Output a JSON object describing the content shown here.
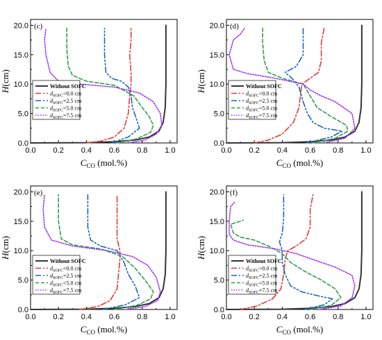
{
  "chart_data": [
    {
      "type": "line",
      "panel_label": "(c)",
      "xlabel_main": "C",
      "xlabel_sub": "CO",
      "xlabel_unit": " (mol.%)",
      "ylabel_italic": "H",
      "ylabel_unit": "(cm)",
      "xlim": [
        0.0,
        1.05
      ],
      "ylim": [
        0.0,
        21.0
      ],
      "xticks": [
        "0.0",
        "0.2",
        "0.4",
        "0.6",
        "0.8",
        "1.0"
      ],
      "yticks": [
        "0.0",
        "5.0",
        "10.0",
        "15.0",
        "20.0"
      ],
      "legend_position": "middle-left",
      "series": [
        {
          "name": "Without SOFC",
          "name_sub": "",
          "name_rest": "",
          "color": "#333333",
          "dash": "solid",
          "x": [
            0.0,
            0.4,
            0.6,
            0.75,
            0.85,
            0.92,
            0.95,
            0.965,
            0.97,
            0.97
          ],
          "y": [
            0.0,
            0.05,
            0.2,
            0.5,
            1.0,
            2.0,
            3.5,
            6.0,
            10.0,
            20.0
          ]
        },
        {
          "name": "d",
          "name_sub": "SOFC",
          "name_rest": "=0.0 cm",
          "color": "#e53935",
          "dash": "dashdot",
          "x": [
            0.4,
            0.5,
            0.6,
            0.67,
            0.7,
            0.71,
            0.72,
            0.72,
            0.71,
            0.72,
            0.72
          ],
          "y": [
            0.0,
            0.3,
            1.0,
            2.5,
            5.0,
            8.0,
            10.0,
            12.0,
            15.0,
            17.5,
            19.5
          ]
        },
        {
          "name": "d",
          "name_sub": "SOFC",
          "name_rest": "=2.5 cm",
          "color": "#1565c0",
          "dash": "dashdotdot",
          "x": [
            0.58,
            0.7,
            0.78,
            0.76,
            0.73,
            0.72,
            0.7,
            0.65,
            0.58,
            0.54,
            0.53,
            0.53
          ],
          "y": [
            0.0,
            1.0,
            2.5,
            4.0,
            6.0,
            8.0,
            9.5,
            10.5,
            11.0,
            12.0,
            15.0,
            19.5
          ]
        },
        {
          "name": "d",
          "name_sub": "SOFC",
          "name_rest": "=5.0 cm",
          "color": "#2e9e47",
          "dash": "dashed",
          "x": [
            0.62,
            0.76,
            0.86,
            0.88,
            0.85,
            0.8,
            0.74,
            0.6,
            0.4,
            0.3,
            0.27,
            0.26,
            0.26
          ],
          "y": [
            0.0,
            0.7,
            1.8,
            3.0,
            4.5,
            6.0,
            8.0,
            9.8,
            10.5,
            11.5,
            13.0,
            16.0,
            19.5
          ]
        },
        {
          "name": "d",
          "name_sub": "SOFC",
          "name_rest": "=7.5 cm",
          "color": "#9b30ff",
          "dash": "dotted",
          "x": [
            0.7,
            0.82,
            0.9,
            0.94,
            0.93,
            0.88,
            0.78,
            0.6,
            0.35,
            0.2,
            0.14,
            0.11,
            0.1,
            0.11
          ],
          "y": [
            0.0,
            0.5,
            1.5,
            3.0,
            5.0,
            7.0,
            8.5,
            9.5,
            10.0,
            10.5,
            12.0,
            15.0,
            17.5,
            19.5
          ]
        }
      ]
    },
    {
      "type": "line",
      "panel_label": "(d)",
      "xlabel_main": "C",
      "xlabel_sub": "CO",
      "xlabel_unit": " (mol.%)",
      "ylabel_italic": "H",
      "ylabel_unit": "(cm)",
      "xlim": [
        0.0,
        1.05
      ],
      "ylim": [
        0.0,
        21.0
      ],
      "xticks": [
        "0.0",
        "0.2",
        "0.4",
        "0.6",
        "0.8",
        "1.0"
      ],
      "yticks": [
        "0.0",
        "5.0",
        "10.0",
        "15.0",
        "20.0"
      ],
      "legend_position": "middle-left",
      "series": [
        {
          "name": "Without SOFC",
          "name_sub": "",
          "name_rest": "",
          "color": "#333333",
          "dash": "solid",
          "x": [
            0.0,
            0.4,
            0.6,
            0.75,
            0.85,
            0.92,
            0.95,
            0.965,
            0.97,
            0.97
          ],
          "y": [
            0.0,
            0.05,
            0.2,
            0.5,
            1.0,
            2.0,
            3.5,
            6.0,
            10.0,
            20.0
          ]
        },
        {
          "name": "d",
          "name_sub": "SOFC",
          "name_rest": "=0.0 cm",
          "color": "#e53935",
          "dash": "dashdot",
          "x": [
            0.2,
            0.3,
            0.4,
            0.48,
            0.52,
            0.53,
            0.54,
            0.6,
            0.66,
            0.68,
            0.68,
            0.7
          ],
          "y": [
            0.0,
            0.5,
            1.5,
            3.5,
            6.0,
            8.0,
            10.0,
            11.0,
            12.0,
            14.0,
            17.0,
            19.5
          ]
        },
        {
          "name": "d",
          "name_sub": "SOFC",
          "name_rest": "=2.5 cm",
          "color": "#1565c0",
          "dash": "dashdotdot",
          "x": [
            0.57,
            0.75,
            0.83,
            0.7,
            0.62,
            0.58,
            0.55,
            0.52,
            0.47,
            0.42,
            0.5,
            0.55,
            0.55
          ],
          "y": [
            0.0,
            1.0,
            2.0,
            2.5,
            3.5,
            5.0,
            7.0,
            9.5,
            11.0,
            12.0,
            13.0,
            15.0,
            19.5
          ]
        },
        {
          "name": "d",
          "name_sub": "SOFC",
          "name_rest": "=5.0 cm",
          "color": "#2e9e47",
          "dash": "dashed",
          "x": [
            0.62,
            0.78,
            0.87,
            0.86,
            0.75,
            0.65,
            0.6,
            0.55,
            0.4,
            0.3,
            0.27,
            0.26,
            0.26
          ],
          "y": [
            0.0,
            0.8,
            2.0,
            3.0,
            4.5,
            6.0,
            8.0,
            10.0,
            11.0,
            12.0,
            14.0,
            17.0,
            19.5
          ]
        },
        {
          "name": "d",
          "name_sub": "SOFC",
          "name_rest": "=7.5 cm",
          "color": "#9b30ff",
          "dash": "dotted",
          "x": [
            0.7,
            0.85,
            0.92,
            0.9,
            0.78,
            0.68,
            0.6,
            0.55,
            0.35,
            0.15,
            0.05,
            0.02,
            0.05,
            0.1,
            0.13
          ],
          "y": [
            0.0,
            0.8,
            2.5,
            5.0,
            7.0,
            8.0,
            9.0,
            10.0,
            11.0,
            11.8,
            12.5,
            15.0,
            17.5,
            18.5,
            19.5
          ]
        }
      ]
    },
    {
      "type": "line",
      "panel_label": "(e)",
      "xlabel_main": "C",
      "xlabel_sub": "CO",
      "xlabel_unit": " (mol.%)",
      "ylabel_italic": "H",
      "ylabel_unit": "(cm)",
      "xlim": [
        0.0,
        1.05
      ],
      "ylim": [
        0.0,
        21.0
      ],
      "xticks": [
        "0.0",
        "0.2",
        "0.4",
        "0.6",
        "0.8",
        "1.0"
      ],
      "yticks": [
        "0.0",
        "5.0",
        "10.0",
        "15.0",
        "20.0"
      ],
      "legend_position": "bottom-left",
      "series": [
        {
          "name": "Without SOFC",
          "name_sub": "",
          "name_rest": "",
          "color": "#333333",
          "dash": "solid",
          "x": [
            0.0,
            0.4,
            0.6,
            0.75,
            0.85,
            0.92,
            0.95,
            0.965,
            0.97,
            0.97
          ],
          "y": [
            0.0,
            0.05,
            0.2,
            0.5,
            1.0,
            2.0,
            3.5,
            6.0,
            10.0,
            20.0
          ]
        },
        {
          "name": "d",
          "name_sub": "SOFC",
          "name_rest": "=0.0 cm",
          "color": "#e53935",
          "dash": "dashdot",
          "x": [
            0.35,
            0.48,
            0.57,
            0.62,
            0.63,
            0.64,
            0.64,
            0.62,
            0.62,
            0.62
          ],
          "y": [
            0.0,
            0.5,
            1.5,
            3.5,
            6.0,
            8.5,
            10.0,
            12.0,
            16.0,
            19.5
          ]
        },
        {
          "name": "d",
          "name_sub": "SOFC",
          "name_rest": "=2.5 cm",
          "color": "#1565c0",
          "dash": "dashdotdot",
          "x": [
            0.52,
            0.68,
            0.78,
            0.75,
            0.7,
            0.67,
            0.62,
            0.5,
            0.43,
            0.41,
            0.41
          ],
          "y": [
            0.0,
            0.8,
            2.0,
            4.0,
            6.0,
            8.0,
            10.0,
            10.8,
            11.8,
            14.0,
            19.5
          ]
        },
        {
          "name": "d",
          "name_sub": "SOFC",
          "name_rest": "=5.0 cm",
          "color": "#2e9e47",
          "dash": "dashed",
          "x": [
            0.6,
            0.76,
            0.86,
            0.88,
            0.82,
            0.75,
            0.66,
            0.5,
            0.3,
            0.22,
            0.2,
            0.2
          ],
          "y": [
            0.0,
            0.7,
            1.8,
            3.0,
            5.0,
            7.0,
            9.0,
            10.3,
            11.0,
            12.0,
            15.0,
            19.5
          ]
        },
        {
          "name": "d",
          "name_sub": "SOFC",
          "name_rest": "=7.5 cm",
          "color": "#9b30ff",
          "dash": "dotted",
          "x": [
            0.68,
            0.82,
            0.91,
            0.93,
            0.9,
            0.84,
            0.73,
            0.55,
            0.3,
            0.15,
            0.1,
            0.09,
            0.1
          ],
          "y": [
            0.0,
            0.5,
            1.5,
            3.0,
            5.5,
            7.5,
            9.0,
            10.0,
            10.8,
            11.8,
            14.0,
            17.0,
            19.5
          ]
        }
      ]
    },
    {
      "type": "line",
      "panel_label": "(f)",
      "xlabel_main": "C",
      "xlabel_sub": "CO",
      "xlabel_unit": " (mol.%)",
      "ylabel_italic": "H",
      "ylabel_unit": "(cm)",
      "xlim": [
        0.0,
        1.05
      ],
      "ylim": [
        0.0,
        21.0
      ],
      "xticks": [
        "0.0",
        "0.2",
        "0.4",
        "0.6",
        "0.8",
        "1.0"
      ],
      "yticks": [
        "0.0",
        "5.0",
        "10.0",
        "15.0",
        "20.0"
      ],
      "legend_position": "bottom-left",
      "series": [
        {
          "name": "Without SOFC",
          "name_sub": "",
          "name_rest": "",
          "color": "#333333",
          "dash": "solid",
          "x": [
            0.0,
            0.4,
            0.6,
            0.75,
            0.85,
            0.92,
            0.95,
            0.965,
            0.97,
            0.97
          ],
          "y": [
            0.0,
            0.05,
            0.2,
            0.5,
            1.0,
            2.0,
            3.5,
            6.0,
            10.0,
            20.0
          ]
        },
        {
          "name": "d",
          "name_sub": "SOFC",
          "name_rest": "=0.0 cm",
          "color": "#e53935",
          "dash": "dashdot",
          "x": [
            0.1,
            0.22,
            0.33,
            0.39,
            0.41,
            0.42,
            0.44,
            0.5,
            0.57,
            0.6,
            0.6,
            0.62
          ],
          "y": [
            0.0,
            0.6,
            1.8,
            3.5,
            6.0,
            8.5,
            10.0,
            10.8,
            12.0,
            14.0,
            17.0,
            19.5
          ]
        },
        {
          "name": "d",
          "name_sub": "SOFC",
          "name_rest": "=2.5 cm",
          "color": "#1565c0",
          "dash": "dashdotdot",
          "x": [
            0.56,
            0.7,
            0.76,
            0.66,
            0.54,
            0.46,
            0.42,
            0.4,
            0.4,
            0.38,
            0.4,
            0.41,
            0.41
          ],
          "y": [
            0.0,
            0.8,
            1.8,
            2.3,
            3.0,
            4.0,
            6.0,
            8.0,
            10.0,
            11.5,
            13.0,
            15.5,
            19.5
          ]
        },
        {
          "name": "d",
          "name_sub": "SOFC",
          "name_rest": "=5.0 cm",
          "color": "#2e9e47",
          "dash": "dashed",
          "x": [
            0.6,
            0.75,
            0.82,
            0.78,
            0.68,
            0.56,
            0.46,
            0.4,
            0.3,
            0.2,
            0.1,
            0.05,
            0.03,
            0.1,
            0.12
          ],
          "y": [
            0.0,
            0.7,
            2.0,
            3.5,
            5.0,
            6.5,
            8.0,
            9.5,
            10.8,
            11.8,
            12.3,
            13.0,
            14.5,
            15.0,
            15.2
          ]
        },
        {
          "name": "d",
          "name_sub": "SOFC",
          "name_rest": "=7.5 cm",
          "color": "#9b30ff",
          "dash": "dotted",
          "x": [
            0.66,
            0.82,
            0.9,
            0.92,
            0.9,
            0.78,
            0.62,
            0.5,
            0.35,
            0.15,
            0.05,
            0.02,
            0.02,
            0.03,
            0.06
          ],
          "y": [
            0.0,
            0.6,
            2.0,
            4.0,
            5.8,
            7.2,
            8.5,
            9.5,
            10.3,
            11.0,
            11.8,
            12.8,
            15.0,
            17.5,
            18.3
          ]
        }
      ]
    }
  ]
}
